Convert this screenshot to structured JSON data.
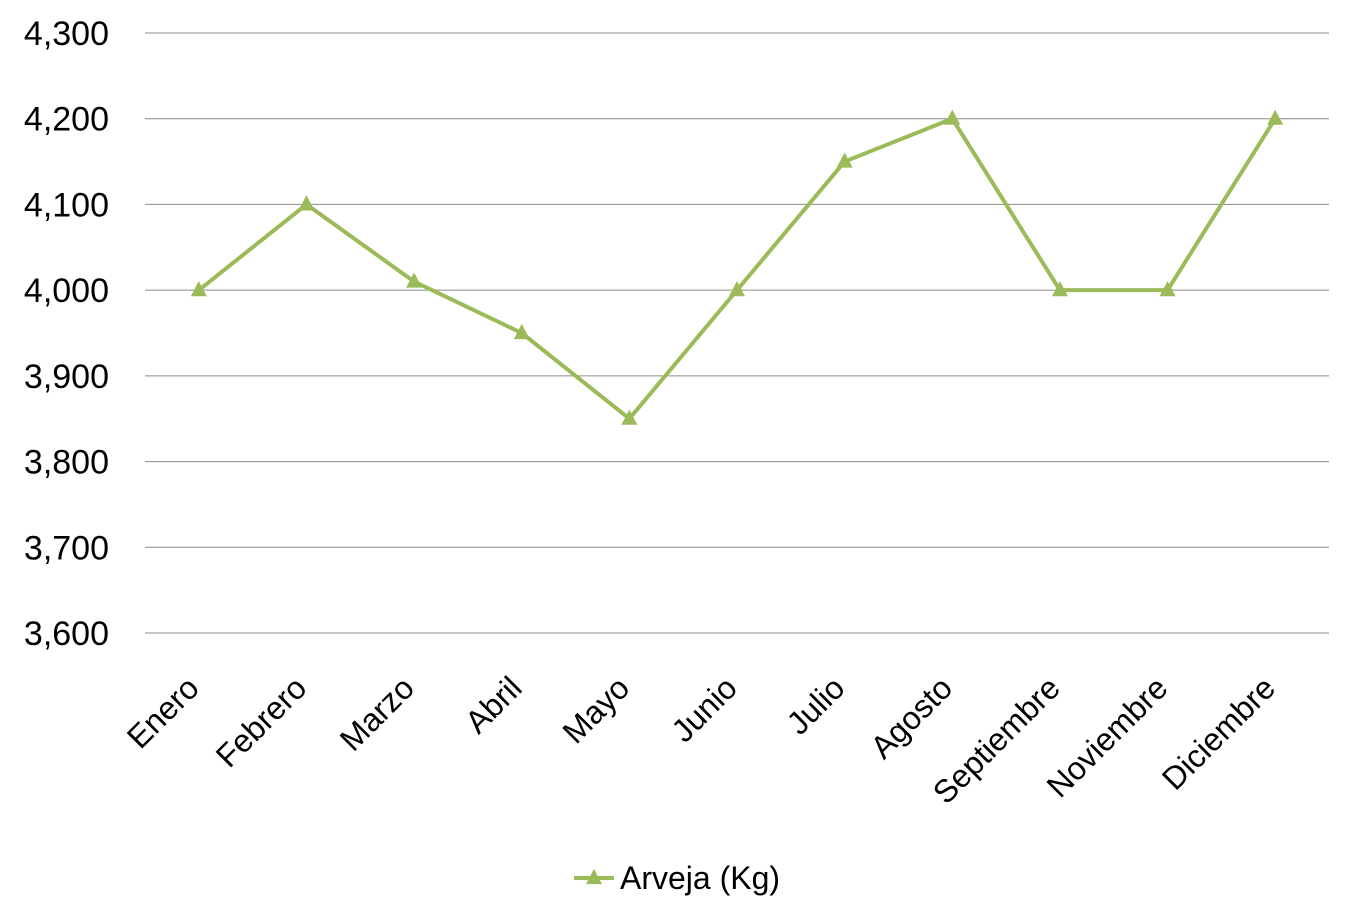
{
  "chart_data": {
    "type": "line",
    "title": "",
    "xlabel": "",
    "ylabel": "",
    "categories": [
      "Enero",
      "Febrero",
      "Marzo",
      "Abril",
      "Mayo",
      "Junio",
      "Julio",
      "Agosto",
      "Septiembre",
      "Noviembre",
      "Diciembre"
    ],
    "series": [
      {
        "name": "Arveja (Kg)",
        "color": "#9bbb59",
        "marker": "triangle",
        "values": [
          4000,
          4100,
          4010,
          3950,
          3850,
          4000,
          4150,
          4200,
          4000,
          4000,
          4200
        ]
      }
    ],
    "ylim": [
      3600,
      4300
    ],
    "yticks": [
      3600,
      3700,
      3800,
      3900,
      4000,
      4100,
      4200,
      4300
    ],
    "ytick_labels": [
      "3,600",
      "3,700",
      "3,800",
      "3,900",
      "4,000",
      "4,100",
      "4,200",
      "4,300"
    ],
    "grid": true,
    "gridline_color": "#8c8c8c",
    "legend_position": "bottom"
  }
}
